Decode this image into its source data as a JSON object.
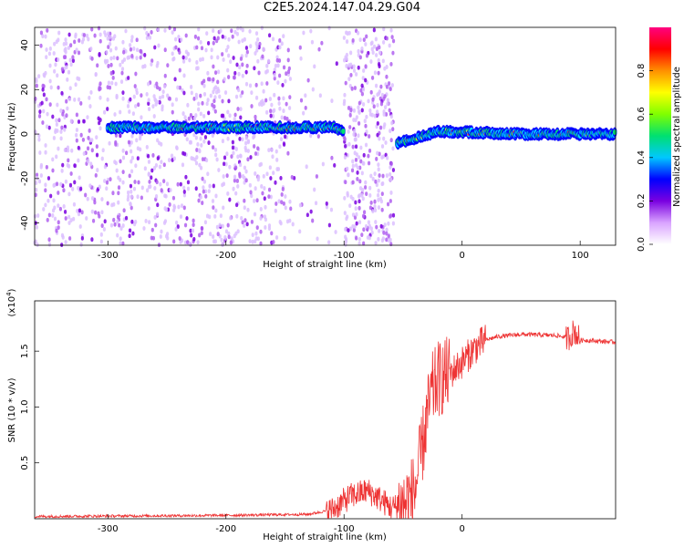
{
  "title": "C2E5.2024.147.04.29.G04",
  "chart_data": [
    {
      "type": "heatmap",
      "xlabel": "Height of straight line (km)",
      "ylabel": "Frequency (Hz)",
      "xlim": [
        -362,
        130
      ],
      "ylim": [
        -50,
        48
      ],
      "x_ticks": [
        -300,
        -200,
        -100,
        0,
        100
      ],
      "y_ticks": [
        -40,
        -20,
        0,
        20,
        40
      ],
      "colorbar": {
        "label": "Normalized spectral amplitude",
        "range": [
          0.0,
          1.0
        ],
        "ticks": [
          "0.0",
          "0.2",
          "0.4",
          "0.6",
          "0.8"
        ],
        "colormap": [
          "#ffffff",
          "#d9a3ff",
          "#7a00e0",
          "#0000ff",
          "#00c8ff",
          "#00e070",
          "#80ff00",
          "#ffff00",
          "#ff9000",
          "#ff0000",
          "#ff0080"
        ]
      },
      "ridge": {
        "segments": [
          {
            "x": [
              -300,
              -230,
              -160,
              -110,
              -100
            ],
            "freq": [
              3,
              3,
              3,
              3,
              2
            ]
          },
          {
            "x": [
              -55,
              -40,
              -20,
              0,
              50,
              130
            ],
            "freq": [
              -4,
              -2,
              1,
              1,
              0,
              0
            ]
          }
        ]
      }
    },
    {
      "type": "line",
      "xlabel": "Height of straight line (km)",
      "ylabel": "SNR (10 * v/v)",
      "multiplier": "(x10",
      "multiplier_exp": "4",
      "multiplier_close": ")",
      "xlim": [
        -362,
        130
      ],
      "ylim": [
        0,
        1.95
      ],
      "x_ticks": [
        -300,
        -200,
        -100,
        0
      ],
      "y_ticks": [
        "0.5",
        "1.0",
        "1.5"
      ],
      "y_tick_values": [
        0.5,
        1.0,
        1.5
      ],
      "color": "#ee3333",
      "series_profile": {
        "x": [
          -362,
          -200,
          -130,
          -110,
          -95,
          -80,
          -70,
          -60,
          -50,
          -40,
          -35,
          -30,
          -25,
          -20,
          -10,
          0,
          10,
          20,
          30,
          50,
          80,
          90,
          95,
          100,
          130
        ],
        "y": [
          0.02,
          0.03,
          0.04,
          0.08,
          0.2,
          0.25,
          0.18,
          0.1,
          0.12,
          0.25,
          0.55,
          0.9,
          1.15,
          1.25,
          1.3,
          1.4,
          1.52,
          1.6,
          1.63,
          1.65,
          1.64,
          1.62,
          1.68,
          1.6,
          1.58
        ]
      }
    }
  ]
}
